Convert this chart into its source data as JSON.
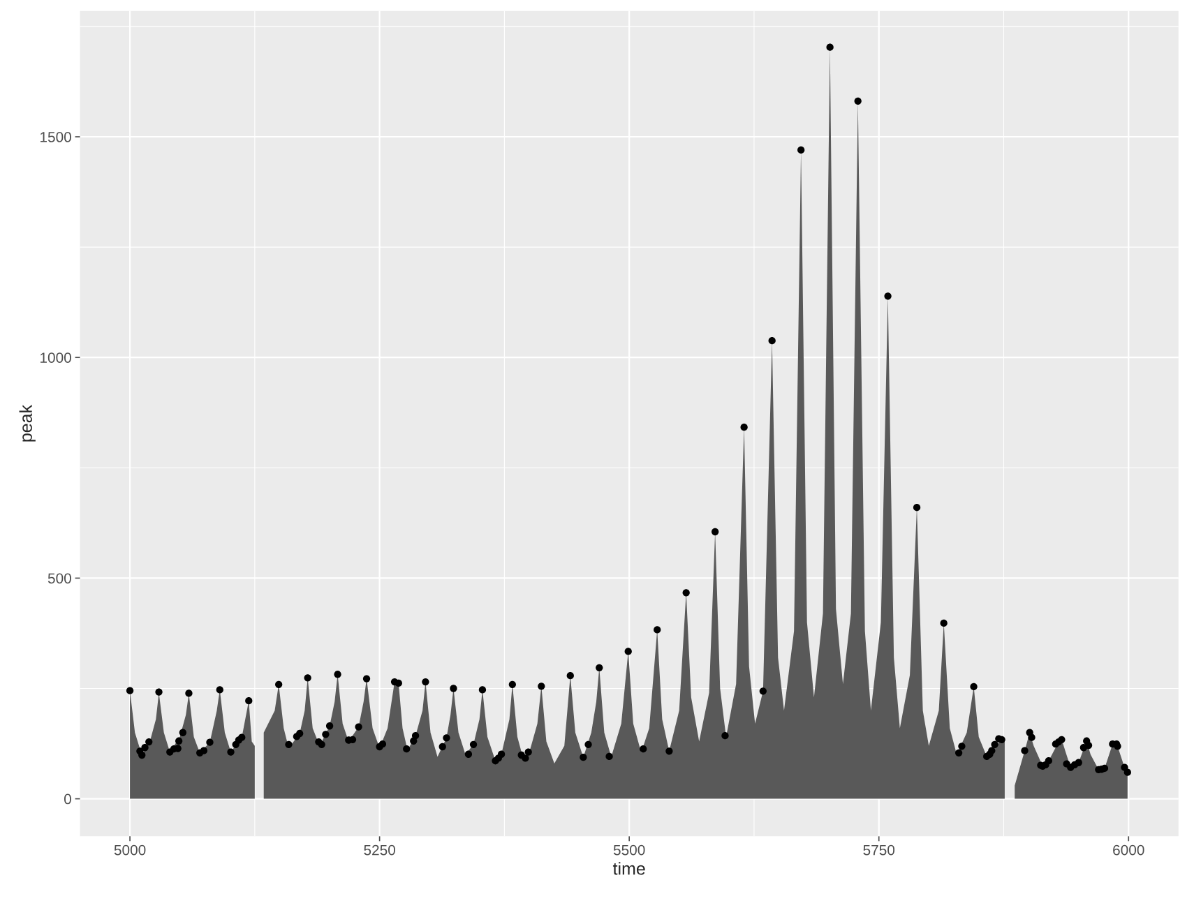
{
  "chart_data": {
    "type": "area",
    "xlabel": "time",
    "ylabel": "peak",
    "xlim": [
      4950,
      6050
    ],
    "ylim": [
      -85,
      1785
    ],
    "xticks": [
      5000,
      5250,
      5500,
      5750,
      6000
    ],
    "yticks": [
      0,
      500,
      1000,
      1500
    ],
    "grid": true,
    "series": [
      {
        "color": "#595959",
        "x": [
          5000,
          5005,
          5012,
          5020,
          5026,
          5029,
          5034,
          5040,
          5050,
          5056,
          5059,
          5064,
          5070,
          5080,
          5087,
          5090,
          5095,
          5101,
          5112,
          5119,
          5122,
          5125,
          5128,
          5134,
          5145,
          5149,
          5154,
          5159,
          5170,
          5175,
          5178,
          5183,
          5190,
          5200,
          5205,
          5208,
          5213,
          5219,
          5229,
          5234,
          5237,
          5243,
          5250,
          5258,
          5265,
          5269,
          5273,
          5278,
          5286,
          5293,
          5296,
          5301,
          5308,
          5317,
          5321,
          5324,
          5329,
          5336,
          5344,
          5350,
          5353,
          5358,
          5366,
          5372,
          5380,
          5383,
          5388,
          5394,
          5400,
          5408,
          5412,
          5417,
          5425,
          5435,
          5441,
          5446,
          5454,
          5462,
          5467,
          5470,
          5475,
          5482,
          5492,
          5499,
          5504,
          5512,
          5520,
          5528,
          5533,
          5540,
          5550,
          5557,
          5562,
          5570,
          5580,
          5586,
          5591,
          5597,
          5607,
          5615,
          5620,
          5626,
          5634,
          5643,
          5649,
          5655,
          5665,
          5672,
          5678,
          5685,
          5694,
          5701,
          5707,
          5714,
          5722,
          5729,
          5736,
          5742,
          5752,
          5759,
          5765,
          5771,
          5781,
          5788,
          5794,
          5800,
          5810,
          5815,
          5821,
          5828,
          5838,
          5845,
          5850,
          5858,
          5873,
          5876,
          5880,
          5886,
          5896,
          5901,
          5905,
          5914,
          5920,
          5930,
          5933,
          5942,
          5950,
          5958,
          5962,
          5970,
          5976,
          5984,
          5989,
          5996,
          5999
        ],
        "values": [
          245,
          150,
          99,
          130,
          180,
          240,
          150,
          106,
          140,
          190,
          238,
          140,
          104,
          128,
          200,
          247,
          150,
          106,
          139,
          222,
          130,
          120,
          null,
          150,
          200,
          259,
          160,
          115,
          148,
          200,
          274,
          160,
          120,
          165,
          220,
          282,
          170,
          130,
          163,
          220,
          272,
          160,
          115,
          160,
          265,
          262,
          160,
          110,
          143,
          200,
          265,
          150,
          95,
          138,
          190,
          250,
          150,
          100,
          123,
          180,
          247,
          140,
          86,
          101,
          180,
          259,
          140,
          90,
          106,
          170,
          255,
          130,
          80,
          120,
          279,
          150,
          94,
          150,
          220,
          297,
          150,
          95,
          170,
          334,
          170,
          105,
          160,
          383,
          180,
          108,
          200,
          467,
          230,
          130,
          240,
          605,
          250,
          140,
          260,
          842,
          300,
          170,
          244,
          1038,
          320,
          200,
          380,
          1470,
          400,
          230,
          420,
          1703,
          430,
          260,
          420,
          1581,
          380,
          200,
          400,
          1139,
          320,
          160,
          280,
          660,
          200,
          120,
          200,
          398,
          160,
          100,
          150,
          254,
          140,
          96,
          134,
          130,
          null,
          30,
          109,
          150,
          120,
          74,
          86,
          129,
          134,
          71,
          82,
          131,
          100,
          66,
          69,
          124,
          119,
          71,
          60
        ]
      },
      {
        "type": "scatter",
        "color": "#000000",
        "marker": "circle",
        "x": [
          5000,
          5010,
          5012,
          5015,
          5019,
          5029,
          5040,
          5044,
          5048,
          5049,
          5053,
          5059,
          5070,
          5074,
          5080,
          5090,
          5101,
          5106,
          5109,
          5112,
          5119,
          5149,
          5159,
          5167,
          5170,
          5178,
          5189,
          5192,
          5196,
          5200,
          5208,
          5219,
          5223,
          5229,
          5237,
          5250,
          5253,
          5265,
          5269,
          5277,
          5284,
          5286,
          5296,
          5313,
          5317,
          5324,
          5339,
          5344,
          5353,
          5366,
          5369,
          5372,
          5383,
          5392,
          5396,
          5399,
          5412,
          5441,
          5454,
          5459,
          5470,
          5480,
          5499,
          5514,
          5528,
          5540,
          5557,
          5586,
          5596,
          5615,
          5634,
          5643,
          5672,
          5701,
          5729,
          5759,
          5788,
          5815,
          5830,
          5833,
          5845,
          5858,
          5861,
          5863,
          5866,
          5870,
          5873,
          5896,
          5901,
          5903,
          5912,
          5914,
          5917,
          5920,
          5927,
          5930,
          5933,
          5938,
          5942,
          5946,
          5950,
          5955,
          5958,
          5960,
          5970,
          5973,
          5976,
          5984,
          5988,
          5989,
          5996,
          5999
        ],
        "values": [
          245,
          108,
          99,
          116,
          129,
          242,
          106,
          113,
          114,
          131,
          150,
          239,
          104,
          109,
          128,
          247,
          106,
          123,
          133,
          139,
          222,
          259,
          123,
          141,
          148,
          274,
          129,
          123,
          146,
          165,
          282,
          133,
          134,
          163,
          272,
          118,
          124,
          265,
          262,
          113,
          131,
          143,
          265,
          118,
          138,
          250,
          101,
          123,
          247,
          86,
          92,
          101,
          259,
          99,
          92,
          106,
          255,
          279,
          94,
          123,
          297,
          96,
          334,
          113,
          383,
          108,
          467,
          605,
          143,
          842,
          244,
          1038,
          1470,
          1703,
          1581,
          1139,
          660,
          398,
          104,
          119,
          254,
          96,
          101,
          109,
          123,
          136,
          134,
          109,
          150,
          139,
          76,
          74,
          77,
          86,
          124,
          129,
          134,
          79,
          71,
          77,
          82,
          116,
          131,
          121,
          66,
          67,
          69,
          124,
          124,
          119,
          71,
          60
        ]
      }
    ]
  }
}
